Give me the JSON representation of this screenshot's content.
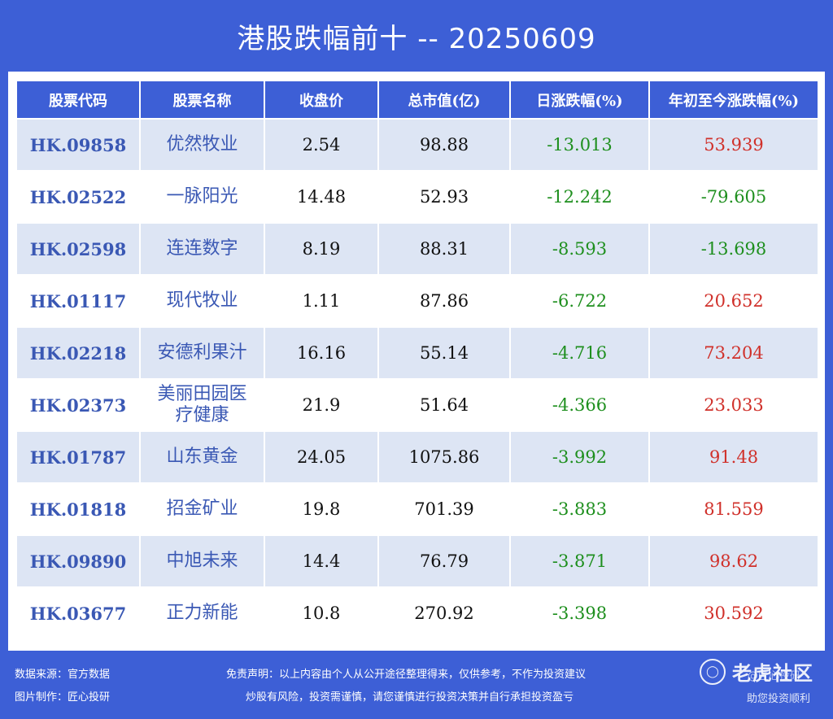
{
  "title": "港股跌幅前十 -- 20250609",
  "headers": [
    "股票代码",
    "股票名称",
    "收盘价",
    "总市值(亿)",
    "日涨跌幅(%)",
    "年初至今涨跌幅(%)"
  ],
  "rows": [
    {
      "code": "HK.09858",
      "name": "优然牧业",
      "close": "2.54",
      "cap": "98.88",
      "day": "-13.013",
      "ytd": "53.939"
    },
    {
      "code": "HK.02522",
      "name": "一脉阳光",
      "close": "14.48",
      "cap": "52.93",
      "day": "-12.242",
      "ytd": "-79.605"
    },
    {
      "code": "HK.02598",
      "name": "连连数字",
      "close": "8.19",
      "cap": "88.31",
      "day": "-8.593",
      "ytd": "-13.698"
    },
    {
      "code": "HK.01117",
      "name": "现代牧业",
      "close": "1.11",
      "cap": "87.86",
      "day": "-6.722",
      "ytd": "20.652"
    },
    {
      "code": "HK.02218",
      "name": "安德利果汁",
      "close": "16.16",
      "cap": "55.14",
      "day": "-4.716",
      "ytd": "73.204"
    },
    {
      "code": "HK.02373",
      "name": "美丽田园医疗健康",
      "close": "21.9",
      "cap": "51.64",
      "day": "-4.366",
      "ytd": "23.033"
    },
    {
      "code": "HK.01787",
      "name": "山东黄金",
      "close": "24.05",
      "cap": "1075.86",
      "day": "-3.992",
      "ytd": "91.48"
    },
    {
      "code": "HK.01818",
      "name": "招金矿业",
      "close": "19.8",
      "cap": "701.39",
      "day": "-3.883",
      "ytd": "81.559"
    },
    {
      "code": "HK.09890",
      "name": "中旭未来",
      "close": "14.4",
      "cap": "76.79",
      "day": "-3.871",
      "ytd": "98.62"
    },
    {
      "code": "HK.03677",
      "name": "正力新能",
      "close": "10.8",
      "cap": "270.92",
      "day": "-3.398",
      "ytd": "30.592"
    }
  ],
  "colors": {
    "negative": "#1e8f1e",
    "positive": "#d0302a",
    "accent": "#3d5fd6"
  },
  "footer": {
    "source": "数据来源：官方数据",
    "maker": "图片制作：匠心投研",
    "disclaimer1": "免责声明：以上内容由个人从公开途径整理得来，仅供参考，不作为投资建议",
    "disclaimer2": "炒股有风险，投资需谨慎，请您谨慎进行投资决策并自行承担投资盈亏",
    "watermark_text": "老虎社区",
    "watermark_icon": "tiger-logo-icon",
    "right1": "@匠心投研",
    "right2": "助您投资顺利"
  }
}
